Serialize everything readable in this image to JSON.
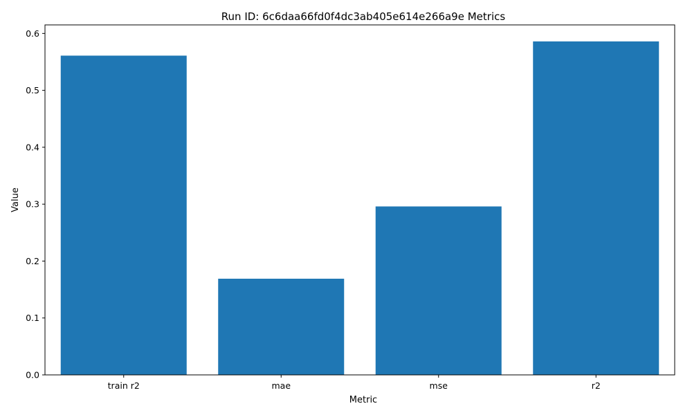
{
  "chart_data": {
    "type": "bar",
    "title": "Run ID: 6c6daa66fd0f4dc3ab405e614e266a9e Metrics",
    "xlabel": "Metric",
    "ylabel": "Value",
    "categories": [
      "train r2",
      "mae",
      "mse",
      "r2"
    ],
    "values": [
      0.561,
      0.169,
      0.296,
      0.586
    ],
    "ylim": [
      0,
      0.615
    ],
    "yticks": [
      0.0,
      0.1,
      0.2,
      0.3,
      0.4,
      0.5,
      0.6
    ],
    "ytick_labels": [
      "0.0",
      "0.1",
      "0.2",
      "0.3",
      "0.4",
      "0.5",
      "0.6"
    ],
    "bar_color": "#1f77b4",
    "grid": false,
    "legend": "none"
  }
}
